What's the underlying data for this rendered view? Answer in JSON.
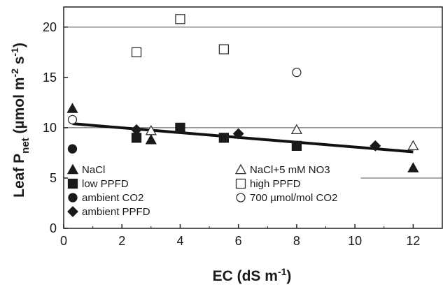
{
  "chart_data": {
    "type": "scatter",
    "title": "",
    "xlabel": "EC (dS m-1)",
    "ylabel": "Leaf Pnet (µmol m-2 s-1)",
    "xlabel_parts": {
      "main": "EC  (dS m",
      "sup": "-1",
      "end": ")"
    },
    "ylabel_parts": {
      "a": "Leaf P",
      "sub": "net",
      "b": "  (µmol m",
      "sup1": "-2",
      "c": " s",
      "sup2": "-1",
      "d": ")"
    },
    "xlim": [
      0,
      13
    ],
    "ylim": [
      0,
      22
    ],
    "xticks": [
      0,
      2,
      4,
      6,
      8,
      10,
      12
    ],
    "yticks": [
      0,
      5,
      10,
      15,
      20
    ],
    "grid": "horizontal at 5, 10, 20",
    "legend_position": "bottom, inside plot",
    "series": [
      {
        "name": "NaCl",
        "marker": "triangle-filled",
        "points": [
          [
            0.3,
            11.9
          ],
          [
            3.0,
            8.8
          ],
          [
            12.0,
            6.0
          ]
        ]
      },
      {
        "name": "low PPFD",
        "marker": "square-filled",
        "points": [
          [
            2.5,
            9.0
          ],
          [
            4.0,
            10.0
          ],
          [
            5.5,
            9.0
          ],
          [
            8.0,
            8.2
          ]
        ]
      },
      {
        "name": "ambient CO2",
        "marker": "circle-filled",
        "points": [
          [
            0.3,
            7.9
          ]
        ]
      },
      {
        "name": "ambient PPFD",
        "marker": "diamond-filled",
        "points": [
          [
            2.5,
            9.8
          ],
          [
            6.0,
            9.4
          ],
          [
            10.7,
            8.2
          ]
        ]
      },
      {
        "name": "NaCl+5 mM NO3",
        "marker": "triangle-open",
        "points": [
          [
            3.0,
            9.7
          ],
          [
            8.0,
            9.8
          ],
          [
            12.0,
            8.2
          ]
        ]
      },
      {
        "name": "high PPFD",
        "marker": "square-open",
        "points": [
          [
            2.5,
            17.5
          ],
          [
            4.0,
            20.8
          ],
          [
            5.5,
            17.8
          ]
        ]
      },
      {
        "name": "700 µmol/mol CO2",
        "marker": "circle-open",
        "points": [
          [
            0.3,
            10.8
          ],
          [
            8.0,
            15.5
          ]
        ]
      }
    ],
    "trendline": {
      "x": [
        0.3,
        12.0
      ],
      "y": [
        10.4,
        7.6
      ]
    }
  }
}
